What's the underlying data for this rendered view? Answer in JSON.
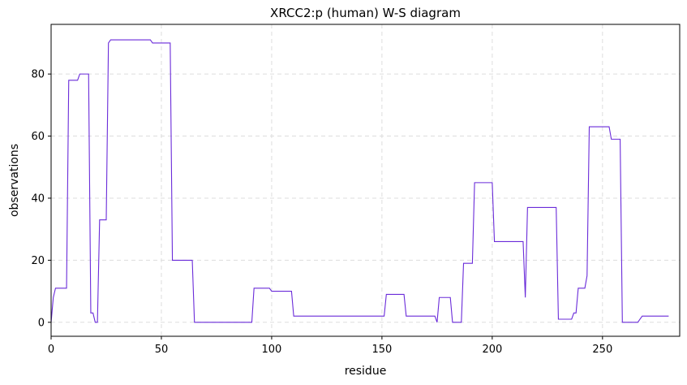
{
  "chart_data": {
    "type": "line",
    "title": "XRCC2:p (human) W-S diagram",
    "xlabel": "residue",
    "ylabel": "observations",
    "xlim": [
      0,
      285
    ],
    "ylim": [
      -4.5,
      96
    ],
    "xticks": [
      0,
      50,
      100,
      150,
      200,
      250
    ],
    "yticks": [
      0,
      20,
      40,
      60,
      80
    ],
    "grid": true,
    "line_color": "#6a2bd9",
    "grid_color": "#dddddd",
    "series": [
      {
        "x": [
          0,
          1,
          2,
          3,
          7,
          8,
          12,
          13,
          17,
          18,
          19,
          20,
          21,
          22,
          25,
          26,
          27,
          45,
          46,
          54,
          55,
          64,
          65,
          91,
          92,
          99,
          100,
          109,
          110,
          151,
          152,
          160,
          161,
          174,
          175,
          176,
          181,
          182,
          186,
          187,
          188,
          191,
          192,
          200,
          201,
          213,
          214,
          215,
          216,
          229,
          230,
          236,
          237,
          238,
          239,
          242,
          243,
          244,
          253,
          254,
          258,
          259,
          266,
          267,
          268,
          280
        ],
        "y": [
          0,
          8,
          11,
          11,
          11,
          78,
          78,
          80,
          80,
          3,
          3,
          0,
          0,
          33,
          33,
          90,
          91,
          91,
          90,
          90,
          20,
          20,
          0,
          0,
          11,
          11,
          10,
          10,
          2,
          2,
          9,
          9,
          2,
          2,
          0,
          8,
          8,
          0,
          0,
          19,
          19,
          19,
          45,
          45,
          26,
          26,
          26,
          8,
          37,
          37,
          1,
          1,
          3,
          3,
          11,
          11,
          15,
          63,
          63,
          59,
          59,
          0,
          0,
          1,
          2,
          2
        ]
      }
    ]
  }
}
